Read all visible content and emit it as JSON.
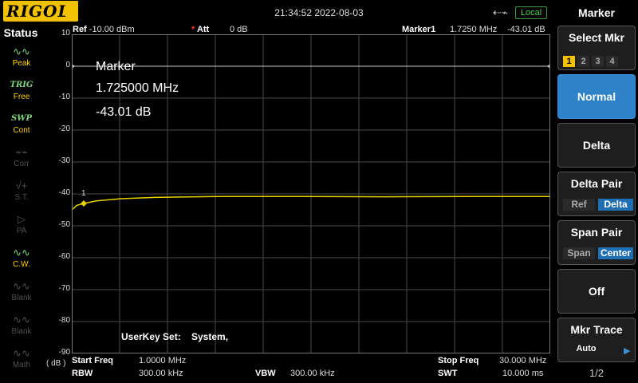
{
  "header": {
    "logo": "RIGOL",
    "clock": "21:34:52 2022-08-03",
    "usb_icon": "usb-icon",
    "remote": "Local"
  },
  "status": {
    "title": "Status",
    "items": [
      {
        "icon": "peak-icon",
        "label": "Peak",
        "active": true
      },
      {
        "icon": "TRIG",
        "label": "Free",
        "active": true
      },
      {
        "icon": "SWP",
        "label": "Cont",
        "active": true
      },
      {
        "icon": "corr-icon",
        "label": "Corr",
        "active": false
      },
      {
        "icon": "st-icon",
        "label": "S.T.",
        "active": false
      },
      {
        "icon": "pa-icon",
        "label": "PA",
        "active": false
      },
      {
        "icon": "cw-icon",
        "label": "C.W.",
        "active": true
      },
      {
        "icon": "blank-icon",
        "label": "Blank",
        "active": false
      },
      {
        "icon": "blank-icon",
        "label": "Blank",
        "active": false
      },
      {
        "icon": "math-icon",
        "label": "Math",
        "active": false
      }
    ]
  },
  "top_info": {
    "ref_label": "Ref",
    "ref_value": "-10.00 dBm",
    "att_label": "Att",
    "att_value": "0 dB",
    "marker_label": "Marker1",
    "marker_freq": "1.7250 MHz",
    "marker_amp": "-43.01 dB"
  },
  "marker_readout": {
    "title": "Marker",
    "freq": "1.725000 MHz",
    "amp": "-43.01 dB",
    "number": "1"
  },
  "y_axis": {
    "ticks": [
      "10",
      "0",
      "-10",
      "-20",
      "-30",
      "-40",
      "-50",
      "-60",
      "-70",
      "-80",
      "-90"
    ],
    "unit": "( dB )"
  },
  "chart_data": {
    "type": "line",
    "x": [
      1.0,
      1.3,
      1.725,
      2.5,
      4,
      6,
      10,
      15,
      20,
      25,
      30
    ],
    "series": [
      {
        "values": [
          -45.0,
          -43.6,
          -43.01,
          -42.2,
          -41.5,
          -41.1,
          -40.8,
          -40.8,
          -40.9,
          -40.8,
          -40.8
        ],
        "color": "#e6d200"
      }
    ],
    "xlim": [
      1.0,
      30.0
    ],
    "ylim": [
      -90,
      10
    ],
    "grid": true,
    "grid_color": "#4a4a4a",
    "background": "#000000"
  },
  "bottom_info": {
    "start_label": "Start Freq",
    "start_value": "1.0000 MHz",
    "stop_label": "Stop Freq",
    "stop_value": "30.000 MHz",
    "rbw_label": "RBW",
    "rbw_value": "300.00 kHz",
    "vbw_label": "VBW",
    "vbw_value": "300.00 kHz",
    "swt_label": "SWT",
    "swt_value": "10.000 ms"
  },
  "userkey": {
    "label": "UserKey Set:",
    "value": "System,"
  },
  "menu": {
    "title": "Marker",
    "select_label": "Select Mkr",
    "select_options": [
      "1",
      "2",
      "3",
      "4"
    ],
    "selected_option": "1",
    "normal": "Normal",
    "delta": "Delta",
    "delta_pair": {
      "label": "Delta Pair",
      "a": "Ref",
      "b": "Delta"
    },
    "span_pair": {
      "label": "Span Pair",
      "a": "Span",
      "b": "Center"
    },
    "off": "Off",
    "mkr_trace": {
      "label": "Mkr Trace",
      "value": "Auto"
    },
    "page": "1/2",
    "accent": "#2e83c8"
  }
}
